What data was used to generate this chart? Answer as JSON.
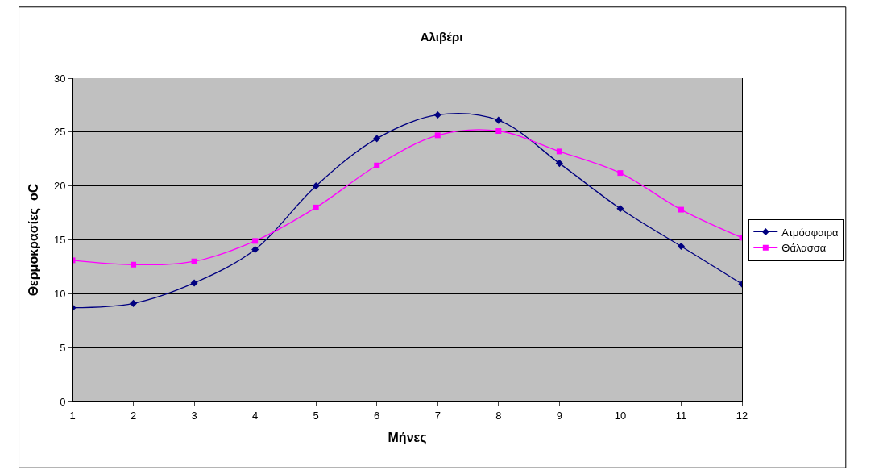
{
  "chart_data": {
    "type": "line",
    "title": "Αλιβέρι",
    "xlabel": "Μήνες",
    "ylabel": "Θερμοκρασίες  oC",
    "x": [
      1,
      2,
      3,
      4,
      5,
      6,
      7,
      8,
      9,
      10,
      11,
      12
    ],
    "series": [
      {
        "name": "Ατμόσφαιρα",
        "color": "#000080",
        "marker": "diamond",
        "values": [
          8.7,
          9.1,
          11.0,
          14.1,
          20.0,
          24.4,
          26.6,
          26.1,
          22.1,
          17.9,
          14.4,
          10.9
        ]
      },
      {
        "name": "Θάλασσα",
        "color": "#ff00ff",
        "marker": "square",
        "values": [
          13.1,
          12.7,
          13.0,
          14.9,
          18.0,
          21.9,
          24.7,
          25.1,
          23.2,
          21.2,
          17.8,
          15.2
        ]
      }
    ],
    "xlim": [
      1,
      12
    ],
    "xticks": [
      1,
      2,
      3,
      4,
      5,
      6,
      7,
      8,
      9,
      10,
      11,
      12
    ],
    "ylim": [
      0,
      30
    ],
    "yticks": [
      0,
      5,
      10,
      15,
      20,
      25,
      30
    ],
    "grid": "y",
    "legend": "right",
    "line_style": "solid"
  }
}
